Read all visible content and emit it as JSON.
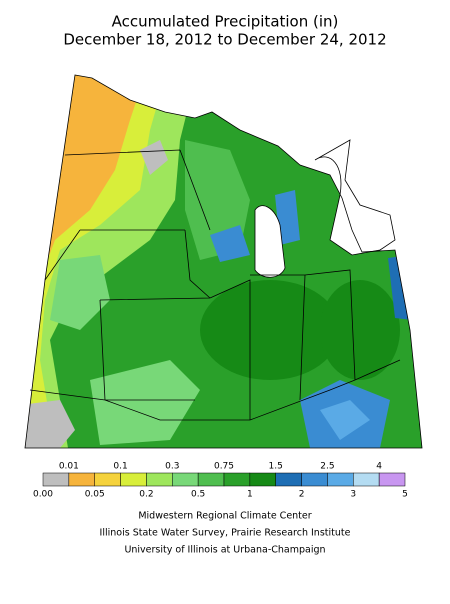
{
  "header": {
    "title": "Accumulated Precipitation (in)",
    "subtitle": "December 18, 2012 to December 24, 2012"
  },
  "legend": {
    "labels_top": [
      "0.01",
      "0.1",
      "0.3",
      "0.75",
      "1.5",
      "2.5",
      "4"
    ],
    "labels_bottom": [
      "0.00",
      "0.05",
      "0.2",
      "0.5",
      "1",
      "2",
      "3",
      "5"
    ],
    "colors": [
      "#bebebe",
      "#f6b43c",
      "#f5d23c",
      "#d8ee3a",
      "#9ee65c",
      "#78d878",
      "#4fbe4f",
      "#2aa02a",
      "#168a16",
      "#1e6eb4",
      "#3a8cd2",
      "#5aaae6",
      "#b4dcf2",
      "#c896f0"
    ]
  },
  "credits": [
    "Midwestern Regional Climate Center",
    "Illinois State Water Survey, Prairie Research Institute",
    "University of Illinois at Urbana-Champaign"
  ]
}
